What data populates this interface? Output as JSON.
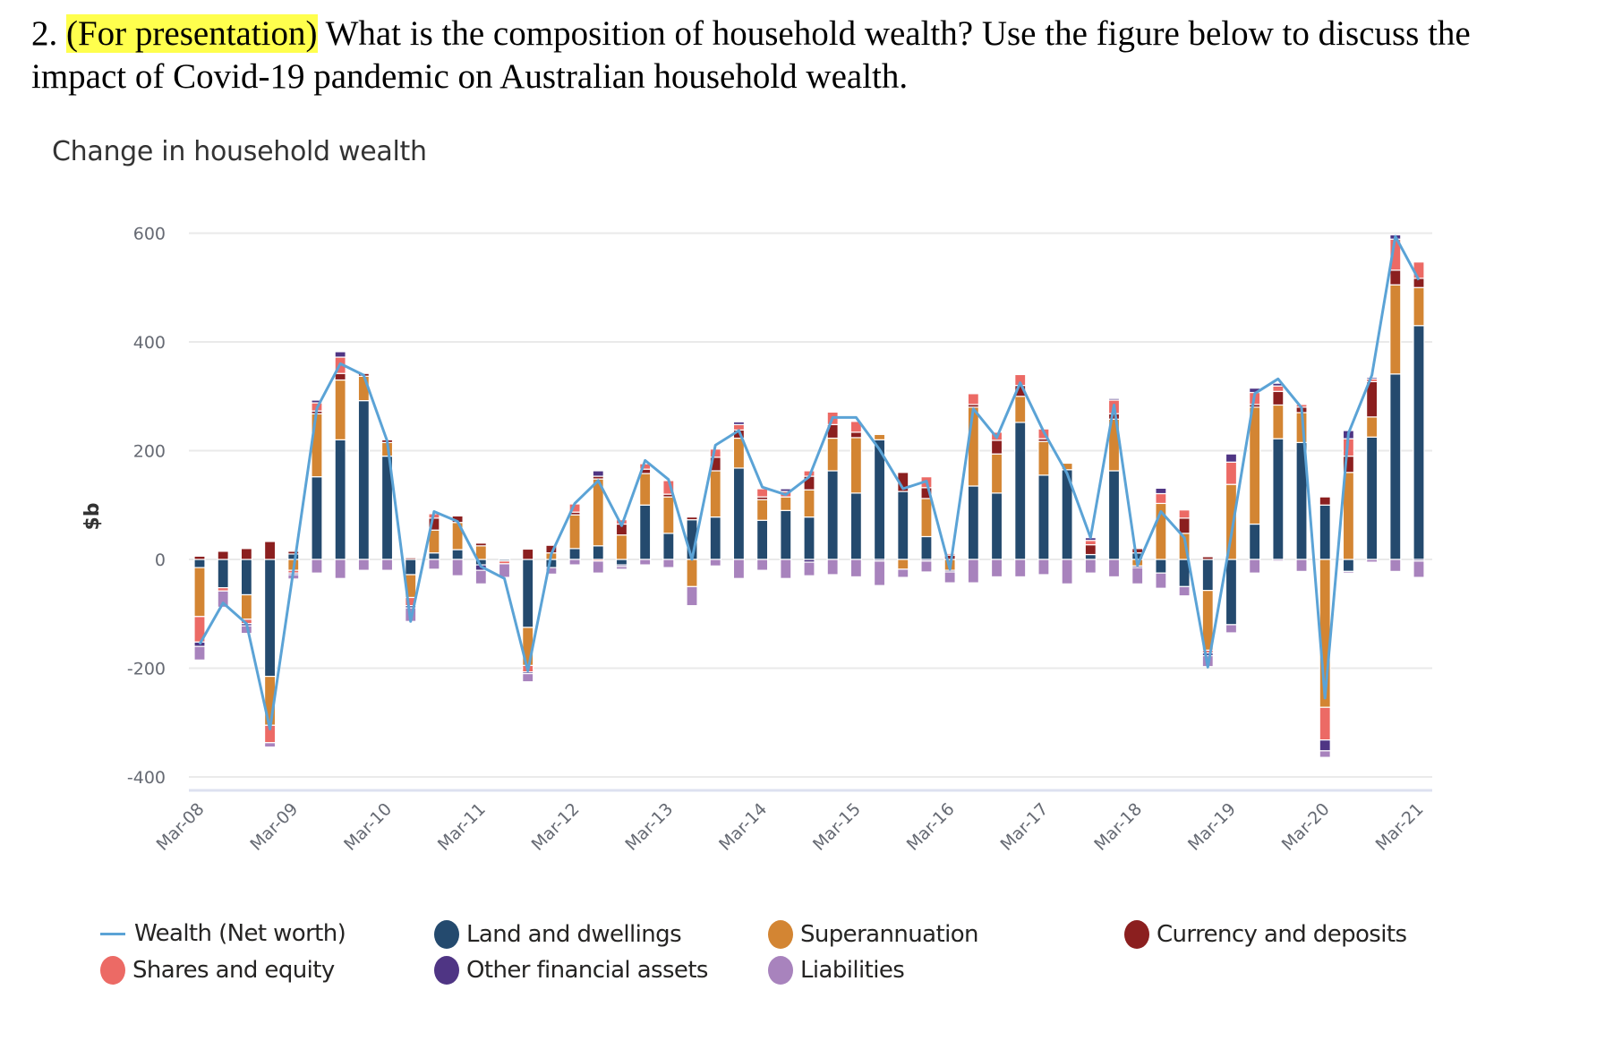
{
  "question": {
    "number": "2.",
    "highlight": "(For presentation)",
    "text": "What is the composition of household wealth? Use the figure below to discuss the impact of Covid-19 pandemic on Australian household wealth."
  },
  "colors": {
    "net_worth": "#5ba3d6",
    "land": "#244a6e",
    "super": "#d38533",
    "currency": "#8b1f1f",
    "shares": "#ec6a65",
    "other": "#4f3584",
    "liabilities": "#a883bd",
    "grid": "#eaeaea",
    "axis": "#dde1f0"
  },
  "legend": [
    {
      "key": "net_worth",
      "label": "Wealth (Net worth)",
      "kind": "line"
    },
    {
      "key": "land",
      "label": "Land and dwellings",
      "kind": "dot"
    },
    {
      "key": "super",
      "label": "Superannuation",
      "kind": "dot"
    },
    {
      "key": "currency",
      "label": "Currency and deposits",
      "kind": "dot"
    },
    {
      "key": "shares",
      "label": "Shares and equity",
      "kind": "dot"
    },
    {
      "key": "other",
      "label": "Other financial assets",
      "kind": "dot"
    },
    {
      "key": "liabilities",
      "label": "Liabilities",
      "kind": "dot"
    }
  ],
  "chart_data": {
    "type": "bar",
    "subtype": "stacked bar with line",
    "title": "Change in household wealth",
    "xlabel": "",
    "ylabel": "$b",
    "ylim": [
      -400,
      600
    ],
    "yticks": [
      600,
      400,
      200,
      0,
      -200,
      -400
    ],
    "grid": true,
    "legend_position": "bottom",
    "x_tick_labels": [
      "Mar-08",
      "Mar-09",
      "Mar-10",
      "Mar-11",
      "Mar-12",
      "Mar-13",
      "Mar-14",
      "Mar-15",
      "Mar-16",
      "Mar-17",
      "Mar-18",
      "Mar-19",
      "Mar-20",
      "Mar-21"
    ],
    "categories": [
      "Mar-08",
      "Jun-08",
      "Sep-08",
      "Dec-08",
      "Mar-09",
      "Jun-09",
      "Sep-09",
      "Dec-09",
      "Mar-10",
      "Jun-10",
      "Sep-10",
      "Dec-10",
      "Mar-11",
      "Jun-11",
      "Sep-11",
      "Dec-11",
      "Mar-12",
      "Jun-12",
      "Sep-12",
      "Dec-12",
      "Mar-13",
      "Jun-13",
      "Sep-13",
      "Dec-13",
      "Mar-14",
      "Jun-14",
      "Sep-14",
      "Dec-14",
      "Mar-15",
      "Jun-15",
      "Sep-15",
      "Dec-15",
      "Mar-16",
      "Jun-16",
      "Sep-16",
      "Dec-16",
      "Mar-17",
      "Jun-17",
      "Sep-17",
      "Dec-17",
      "Mar-18",
      "Jun-18",
      "Sep-18",
      "Dec-18",
      "Mar-19",
      "Jun-19",
      "Sep-19",
      "Dec-19",
      "Mar-20",
      "Jun-20",
      "Sep-20",
      "Dec-20",
      "Mar-21"
    ],
    "series": [
      {
        "key": "land",
        "name": "Land and dwellings",
        "type": "bar",
        "values": [
          -15,
          -52,
          -65,
          -215,
          10,
          152,
          220,
          292,
          190,
          -28,
          12,
          18,
          -10,
          -3,
          -125,
          -15,
          20,
          25,
          -10,
          100,
          48,
          73,
          78,
          168,
          72,
          90,
          78,
          163,
          122,
          220,
          125,
          42,
          0,
          135,
          122,
          252,
          155,
          165,
          9,
          163,
          12,
          -25,
          -50,
          -57,
          -120,
          65,
          222,
          215,
          100,
          -22,
          225,
          341,
          430
        ]
      },
      {
        "key": "super",
        "name": "Superannuation",
        "type": "bar",
        "values": [
          -90,
          0,
          -45,
          -90,
          -20,
          116,
          110,
          45,
          25,
          -42,
          42,
          50,
          25,
          0,
          -70,
          12,
          62,
          123,
          45,
          58,
          67,
          -50,
          85,
          55,
          38,
          25,
          50,
          60,
          102,
          10,
          -18,
          70,
          -20,
          145,
          72,
          48,
          62,
          12,
          0,
          95,
          -12,
          103,
          48,
          -110,
          138,
          215,
          62,
          55,
          -272,
          160,
          37,
          164,
          70
        ]
      },
      {
        "key": "currency",
        "name": "Currency and deposits",
        "type": "bar",
        "values": [
          6,
          15,
          20,
          33,
          5,
          5,
          12,
          5,
          5,
          3,
          22,
          12,
          5,
          0,
          19,
          14,
          5,
          5,
          20,
          8,
          5,
          5,
          25,
          15,
          5,
          0,
          25,
          25,
          10,
          2,
          35,
          20,
          8,
          5,
          25,
          20,
          5,
          0,
          18,
          10,
          8,
          0,
          28,
          5,
          0,
          5,
          25,
          10,
          15,
          30,
          65,
          27,
          17
        ]
      },
      {
        "key": "shares",
        "name": "Shares and equity",
        "type": "bar",
        "values": [
          -47,
          -6,
          -8,
          -32,
          -5,
          15,
          30,
          0,
          0,
          -15,
          8,
          0,
          0,
          -5,
          -12,
          0,
          15,
          -3,
          8,
          10,
          25,
          0,
          15,
          10,
          15,
          10,
          10,
          23,
          20,
          0,
          0,
          20,
          3,
          20,
          15,
          20,
          18,
          0,
          8,
          25,
          0,
          18,
          15,
          -5,
          41,
          22,
          10,
          5,
          -60,
          32,
          5,
          57,
          30
        ]
      },
      {
        "key": "other",
        "name": "Other financial assets",
        "type": "bar",
        "values": [
          -8,
          0,
          -4,
          0,
          -3,
          5,
          10,
          0,
          2,
          -4,
          0,
          2,
          -10,
          2,
          -3,
          0,
          0,
          10,
          -3,
          0,
          0,
          0,
          0,
          5,
          0,
          5,
          -5,
          0,
          2,
          -3,
          0,
          -3,
          -3,
          2,
          0,
          0,
          0,
          0,
          5,
          3,
          -3,
          10,
          0,
          -5,
          15,
          8,
          5,
          2,
          -20,
          15,
          3,
          8,
          -3
        ]
      },
      {
        "key": "liabilities",
        "name": "Liabilities",
        "type": "bar",
        "values": [
          -25,
          -30,
          -14,
          -8,
          -8,
          -25,
          -35,
          -20,
          -20,
          -25,
          -18,
          -30,
          -25,
          -25,
          -15,
          -12,
          -10,
          -22,
          -5,
          -10,
          -15,
          -35,
          -12,
          -35,
          -20,
          -35,
          -25,
          -28,
          -32,
          -45,
          -15,
          -20,
          -20,
          -43,
          -32,
          -32,
          -28,
          -45,
          -25,
          -32,
          -30,
          -28,
          -17,
          -20,
          -15,
          -25,
          -3,
          -22,
          -12,
          -3,
          -5,
          -22,
          -30
        ]
      },
      {
        "key": "net_worth",
        "name": "Wealth (Net worth)",
        "type": "line",
        "values": [
          -156,
          -80,
          -118,
          -312,
          -20,
          278,
          360,
          339,
          218,
          -114,
          88,
          70,
          -13,
          -35,
          -205,
          10,
          103,
          145,
          62,
          182,
          147,
          0,
          210,
          237,
          133,
          119,
          152,
          261,
          261,
          202,
          130,
          144,
          -18,
          277,
          224,
          325,
          235,
          158,
          40,
          284,
          -11,
          88,
          40,
          -198,
          45,
          305,
          332,
          279,
          -255,
          232,
          339,
          594,
          514
        ]
      }
    ]
  }
}
